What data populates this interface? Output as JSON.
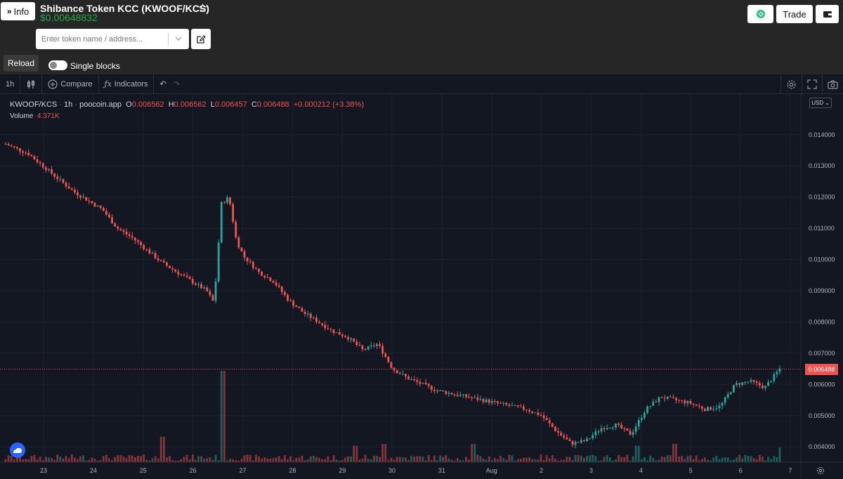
{
  "header": {
    "info_label": "Info",
    "token_title": "Shibance Token KCC (KWOOF/KCS)",
    "token_price": "$0.00648832",
    "search_placeholder": "Enter token name / address...",
    "reload_label": "Reload",
    "single_blocks_label": "Single blocks",
    "trade_label": "Trade",
    "accent_green": "#28a745"
  },
  "toolbar": {
    "interval": "1h",
    "compare_label": "Compare",
    "indicators_label": "Indicators"
  },
  "legend": {
    "symbol": "KWOOF/KCS",
    "interval": "1h",
    "source": "poocoin.app",
    "open_label": "O",
    "open": "0.006562",
    "high_label": "H",
    "high": "0.006562",
    "low_label": "L",
    "low": "0.006457",
    "close_label": "C",
    "close": "0.006488",
    "change": "+0.000212 (+3.38%)",
    "volume_label": "Volume",
    "volume": "4.371K",
    "currency": "USD"
  },
  "chart_data": {
    "type": "candlestick",
    "series": [
      {
        "name": "KWOOF/KCS",
        "values": []
      }
    ],
    "x_ticks": [
      "23",
      "24",
      "25",
      "26",
      "27",
      "28",
      "29",
      "30",
      "31",
      "Aug",
      "2",
      "3",
      "4",
      "5",
      "6",
      "7"
    ],
    "y_ticks": [
      "0.014000",
      "0.013000",
      "0.012000",
      "0.011000",
      "0.010000",
      "0.009000",
      "0.008000",
      "0.007000",
      "0.006000",
      "0.005000",
      "0.004000"
    ],
    "ylim": [
      0.0036,
      0.0153
    ],
    "last_price": "0.006488",
    "last_price_value": 0.006488,
    "up_color": "#26a69a",
    "down_color": "#ef5350",
    "path_points": [
      [
        0,
        0.0137
      ],
      [
        3,
        0.0134
      ],
      [
        5,
        0.013
      ],
      [
        7,
        0.0126
      ],
      [
        9,
        0.0122
      ],
      [
        11,
        0.0119
      ],
      [
        13,
        0.0116
      ],
      [
        15,
        0.011
      ],
      [
        17,
        0.0107
      ],
      [
        19,
        0.0103
      ],
      [
        21,
        0.0099
      ],
      [
        23,
        0.0096
      ],
      [
        25,
        0.0093
      ],
      [
        27,
        0.009
      ],
      [
        28,
        0.0086
      ],
      [
        29,
        0.0118
      ],
      [
        30,
        0.012
      ],
      [
        31,
        0.0106
      ],
      [
        32,
        0.0101
      ],
      [
        34,
        0.0096
      ],
      [
        36,
        0.0093
      ],
      [
        38,
        0.0087
      ],
      [
        40,
        0.0083
      ],
      [
        42,
        0.008
      ],
      [
        44,
        0.0077
      ],
      [
        46,
        0.0075
      ],
      [
        48,
        0.0071
      ],
      [
        50,
        0.0073
      ],
      [
        52,
        0.0065
      ],
      [
        54,
        0.0062
      ],
      [
        56,
        0.006
      ],
      [
        58,
        0.0058
      ],
      [
        60,
        0.0057
      ],
      [
        62,
        0.0056
      ],
      [
        64,
        0.0055
      ],
      [
        66,
        0.0054
      ],
      [
        68,
        0.0053
      ],
      [
        70,
        0.0052
      ],
      [
        72,
        0.005
      ],
      [
        74,
        0.0045
      ],
      [
        76,
        0.0041
      ],
      [
        78,
        0.0042
      ],
      [
        80,
        0.0046
      ],
      [
        82,
        0.0047
      ],
      [
        84,
        0.0044
      ],
      [
        86,
        0.0052
      ],
      [
        88,
        0.0056
      ],
      [
        90,
        0.0055
      ],
      [
        92,
        0.0054
      ],
      [
        94,
        0.0052
      ],
      [
        96,
        0.0053
      ],
      [
        98,
        0.006
      ],
      [
        100,
        0.0061
      ],
      [
        102,
        0.0059
      ],
      [
        104,
        0.0065
      ]
    ],
    "volume_spikes": [
      [
        29,
        1.0
      ],
      [
        21,
        0.28
      ],
      [
        47,
        0.18
      ],
      [
        51,
        0.2
      ],
      [
        63,
        0.2
      ],
      [
        85,
        0.18
      ],
      [
        90,
        0.2
      ],
      [
        104,
        0.16
      ]
    ]
  }
}
